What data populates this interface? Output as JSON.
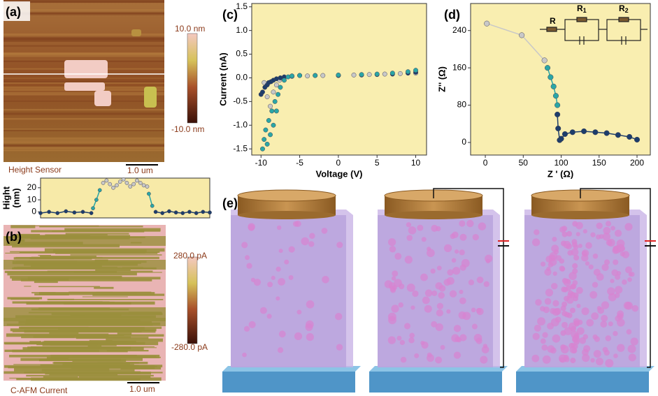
{
  "panel_labels": [
    "(a)",
    "(b)",
    "(c)",
    "(d)",
    "(e)"
  ],
  "afm": {
    "height": {
      "max_label": "10.0 nm",
      "min_label": "-10.0 nm",
      "caption": "Height Sensor",
      "scale_bar": "1.0 um"
    },
    "current": {
      "max_label": "280.0 pA",
      "min_label": "-280.0 pA",
      "caption": "C-AFM Current",
      "scale_bar": "1.0 um"
    }
  },
  "circuit": {
    "elements": [
      {
        "label": "R",
        "sub": ""
      },
      {
        "label": "R",
        "sub": "1"
      },
      {
        "label": "R",
        "sub": "2"
      }
    ]
  },
  "chart_data": [
    {
      "type": "scatter",
      "x_label": "Voltage (V)",
      "y_label": "Current (nA)",
      "xlim": [
        -11.2,
        11.4
      ],
      "ylim": [
        -1.63,
        1.57
      ],
      "xticks": [
        -10,
        -5,
        0,
        5,
        10
      ],
      "yticks": [
        -1.5,
        -1.0,
        -0.5,
        0.0,
        0.5,
        1.0,
        1.5
      ],
      "series": [
        {
          "color": "#c8c8c8",
          "x": [
            -9.6,
            -9.2,
            -8.8,
            -8.4,
            -8,
            -7.6,
            -7,
            -6,
            -4,
            -2,
            0,
            2,
            4,
            6,
            8,
            10
          ],
          "values": [
            -0.1,
            -0.4,
            -0.6,
            -0.3,
            -0.15,
            -0.05,
            0,
            0.03,
            0.04,
            0.05,
            0.05,
            0.06,
            0.07,
            0.08,
            0.09,
            0.1
          ]
        },
        {
          "color": "#1d3d6b",
          "x": [
            -10,
            -9.8,
            -9.5,
            -9.2,
            -9,
            -8.7,
            -8.4,
            -8,
            -7.5,
            -7,
            -6,
            -5,
            -3,
            0,
            3,
            5,
            7,
            9,
            10
          ],
          "values": [
            -0.35,
            -0.3,
            -0.2,
            -0.15,
            -0.1,
            -0.08,
            -0.05,
            -0.02,
            0,
            0.02,
            0.04,
            0.05,
            0.05,
            0.05,
            0.06,
            0.07,
            0.08,
            0.1,
            0.12
          ]
        },
        {
          "color": "#2aa6a6",
          "x": [
            -9.8,
            -9.6,
            -9.4,
            -9.2,
            -9,
            -8.8,
            -8.6,
            -8.4,
            -8.2,
            -8,
            -7.8,
            -7.5,
            -7,
            -6.5,
            -6,
            -5,
            -3,
            0,
            3,
            5,
            7,
            9,
            10
          ],
          "values": [
            -1.5,
            -1.3,
            -1.1,
            -1.4,
            -0.9,
            -1.2,
            -0.7,
            -1.0,
            -0.5,
            -0.7,
            -0.35,
            -0.2,
            -0.05,
            0.02,
            0.04,
            0.05,
            0.05,
            0.06,
            0.07,
            0.08,
            0.1,
            0.13,
            0.16
          ]
        }
      ]
    },
    {
      "type": "line",
      "x_label": "Z ' (Ω)",
      "y_label": "Z'' (Ω)",
      "xlim": [
        -19.4,
        217.5
      ],
      "ylim": [
        -27,
        298
      ],
      "xticks": [
        0,
        50,
        100,
        150,
        200
      ],
      "yticks": [
        0,
        80,
        160,
        240
      ],
      "series": [
        {
          "color": "#c8c8c8",
          "x": [
            2,
            48,
            78
          ],
          "values": [
            255,
            230,
            176
          ]
        },
        {
          "color": "#2aa6a6",
          "x": [
            82,
            86,
            90,
            93,
            95
          ],
          "values": [
            160,
            140,
            120,
            100,
            80
          ]
        },
        {
          "color": "#1d3d6b",
          "x": [
            95,
            96,
            98,
            100,
            105,
            115,
            130,
            145,
            160,
            175,
            190,
            200
          ],
          "values": [
            60,
            30,
            5,
            8,
            18,
            22,
            24,
            22,
            20,
            16,
            12,
            6
          ]
        }
      ]
    },
    {
      "type": "line",
      "y_label": [
        "Hight",
        "(nm)"
      ],
      "xlim": [
        0,
        100
      ],
      "ylim": [
        -5,
        28
      ],
      "yticks": [
        0,
        10,
        20
      ],
      "series": [
        {
          "color": "#1d3d6b",
          "x": [
            0,
            5,
            10,
            15,
            20,
            25,
            30
          ],
          "values": [
            -1,
            0,
            -1,
            0.5,
            -0.5,
            0,
            -1
          ]
        },
        {
          "color": "#2aa6a6",
          "x": [
            31,
            33,
            35
          ],
          "values": [
            3,
            10,
            18
          ]
        },
        {
          "color": "#c8c8c8",
          "x": [
            37,
            39,
            41,
            43,
            45,
            47,
            49,
            51,
            53,
            55,
            57,
            59,
            61,
            63
          ],
          "values": [
            24,
            26,
            23,
            20,
            22,
            25,
            27,
            24,
            21,
            23,
            26,
            24,
            22,
            21
          ]
        },
        {
          "color": "#2aa6a6",
          "x": [
            64,
            66
          ],
          "values": [
            15,
            5
          ]
        },
        {
          "color": "#1d3d6b",
          "x": [
            68,
            72,
            76,
            80,
            84,
            88,
            92,
            96,
            100
          ],
          "values": [
            0,
            -1,
            0.5,
            -0.5,
            -1,
            0,
            -1,
            0,
            -0.5
          ]
        }
      ]
    }
  ]
}
